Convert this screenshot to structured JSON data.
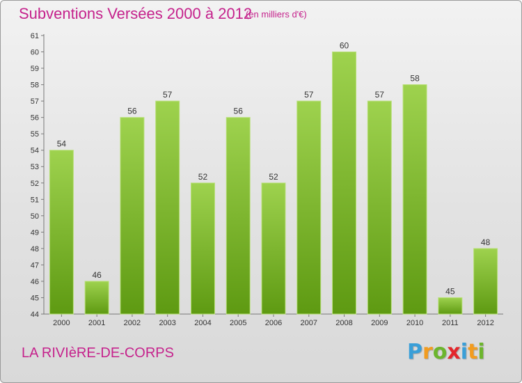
{
  "title": "Subventions Versées 2000 à 2012",
  "subtitle": "(en milliers d'€)",
  "city": "LA RIVIèRE-DE-CORPS",
  "logo": {
    "letters": [
      "P",
      "r",
      "o",
      "x",
      "i",
      "t",
      "i"
    ],
    "colors": [
      "#3a9fd8",
      "#f29c1f",
      "#6cb52d",
      "#e3262b",
      "#3a9fd8",
      "#f29c1f",
      "#6cb52d"
    ]
  },
  "colors": {
    "accent": "#c5228c",
    "bar_light": "#9ed24e",
    "bar_dark": "#5e9a12"
  },
  "chart_data": {
    "type": "bar",
    "categories": [
      "2000",
      "2001",
      "2002",
      "2003",
      "2004",
      "2005",
      "2006",
      "2007",
      "2008",
      "2009",
      "2010",
      "2011",
      "2012"
    ],
    "values": [
      54,
      46,
      56,
      57,
      52,
      56,
      52,
      57,
      60,
      57,
      58,
      45,
      48
    ],
    "title": "Subventions Versées 2000 à 2012",
    "ylim": [
      44,
      61
    ],
    "yticks": [
      44,
      45,
      46,
      47,
      48,
      49,
      50,
      51,
      52,
      53,
      54,
      55,
      56,
      57,
      58,
      59,
      60,
      61
    ],
    "grid": false
  }
}
